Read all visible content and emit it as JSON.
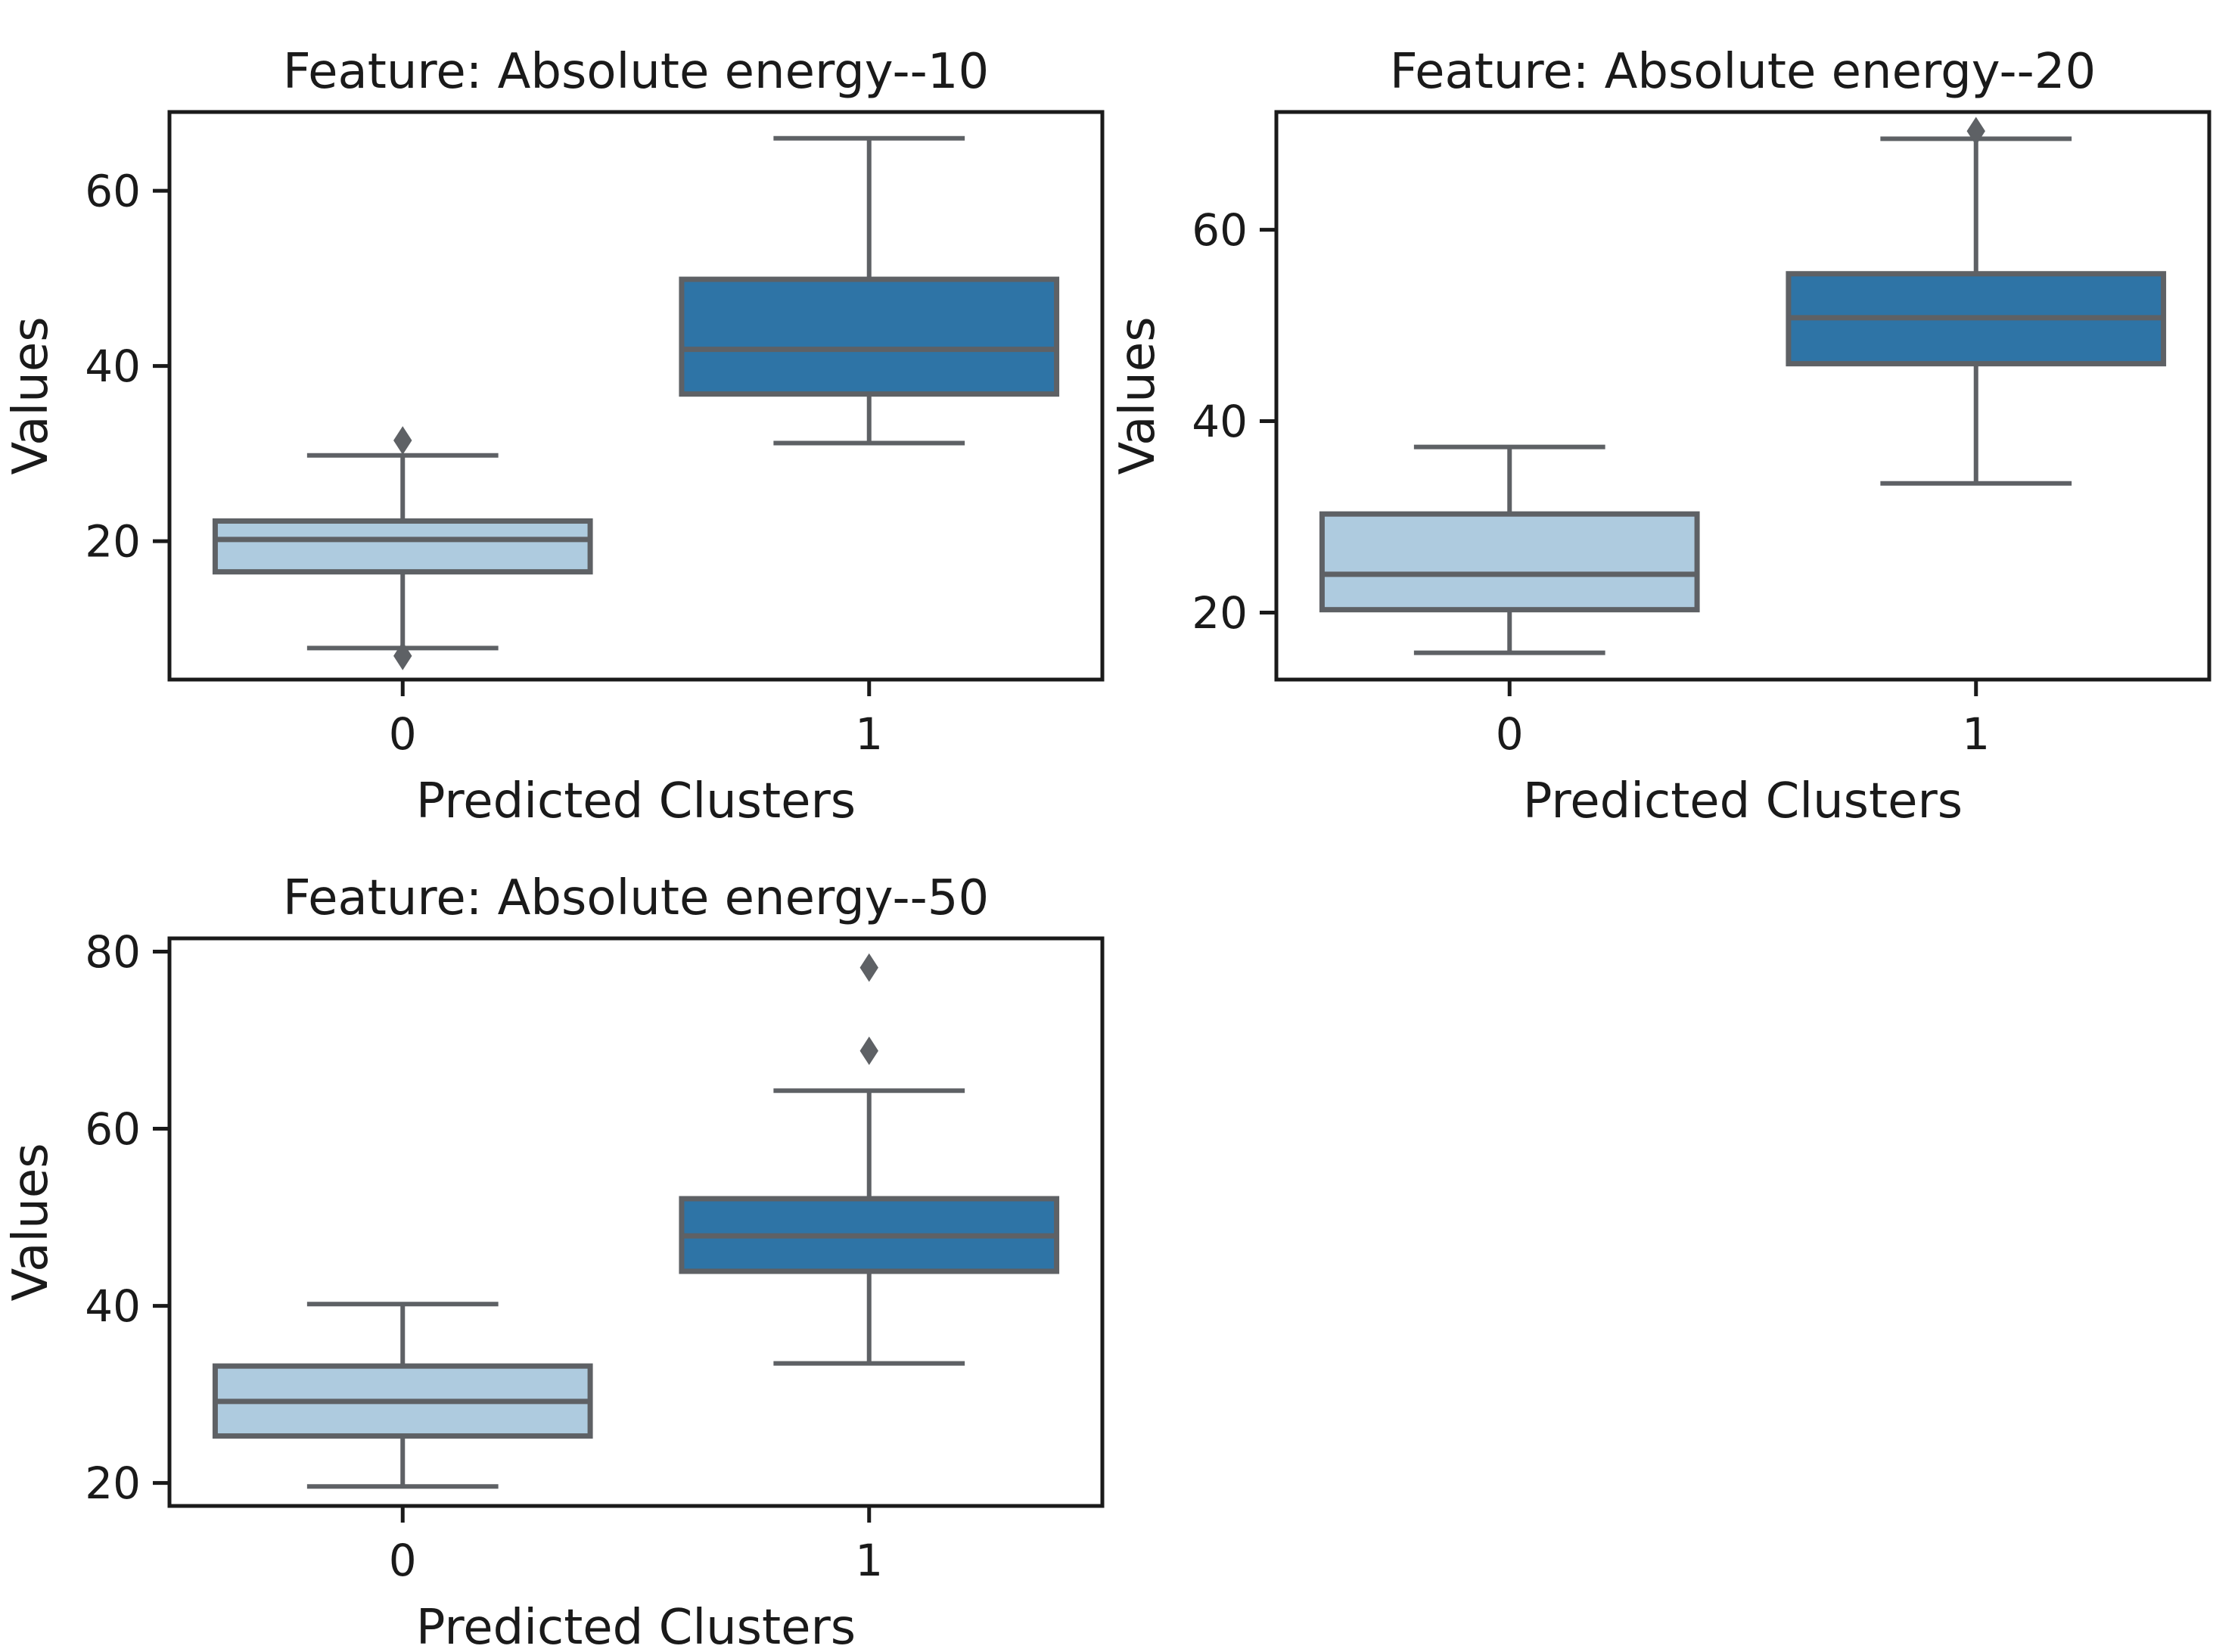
{
  "figure": {
    "background": "#ffffff",
    "kind": "matplotlib-boxplot-grid",
    "empty_quadrant": "bottom-right"
  },
  "palette": {
    "cluster0_fill": "#aecbdf",
    "cluster1_fill": "#2e74a6",
    "line_gray": "#5e6165",
    "spine_color": "#1a1a1a",
    "text_color": "#1a1a1a"
  },
  "chart_data": [
    {
      "type": "box",
      "title": "Feature: Absolute energy--10",
      "xlabel": "Predicted Clusters",
      "ylabel": "Values",
      "categories": [
        "0",
        "1"
      ],
      "yticks": [
        20,
        40,
        60
      ],
      "ylim": [
        4.2,
        69.0
      ],
      "grid": false,
      "legend": "none",
      "boxes": [
        {
          "category": "0",
          "whisker_low": 7.8,
          "q1": 16.5,
          "median": 20.2,
          "q3": 22.3,
          "whisker_high": 29.8,
          "outliers": [
            31.5,
            6.9
          ],
          "fill": "#aecbdf"
        },
        {
          "category": "1",
          "whisker_low": 31.2,
          "q1": 36.8,
          "median": 41.9,
          "q3": 49.9,
          "whisker_high": 66.0,
          "outliers": [],
          "fill": "#2e74a6"
        }
      ]
    },
    {
      "type": "box",
      "title": "Feature: Absolute energy--20",
      "xlabel": "Predicted Clusters",
      "ylabel": "Values",
      "categories": [
        "0",
        "1"
      ],
      "yticks": [
        20,
        40,
        60
      ],
      "ylim": [
        13.0,
        72.3
      ],
      "grid": false,
      "legend": "none",
      "boxes": [
        {
          "category": "0",
          "whisker_low": 15.8,
          "q1": 20.3,
          "median": 24.0,
          "q3": 30.3,
          "whisker_high": 37.3,
          "outliers": [],
          "fill": "#aecbdf"
        },
        {
          "category": "1",
          "whisker_low": 33.5,
          "q1": 46.0,
          "median": 50.8,
          "q3": 55.4,
          "whisker_high": 69.5,
          "outliers": [
            70.3
          ],
          "fill": "#2e74a6"
        }
      ]
    },
    {
      "type": "box",
      "title": "Feature: Absolute energy--50",
      "xlabel": "Predicted Clusters",
      "ylabel": "Values",
      "categories": [
        "0",
        "1"
      ],
      "yticks": [
        20,
        40,
        60,
        80
      ],
      "ylim": [
        17.4,
        81.5
      ],
      "grid": false,
      "legend": "none",
      "boxes": [
        {
          "category": "0",
          "whisker_low": 19.6,
          "q1": 25.3,
          "median": 29.2,
          "q3": 33.2,
          "whisker_high": 40.2,
          "outliers": [],
          "fill": "#aecbdf"
        },
        {
          "category": "1",
          "whisker_low": 33.5,
          "q1": 43.9,
          "median": 47.9,
          "q3": 52.1,
          "whisker_high": 64.3,
          "outliers": [
            68.8,
            78.2
          ],
          "fill": "#2e74a6"
        }
      ]
    }
  ]
}
